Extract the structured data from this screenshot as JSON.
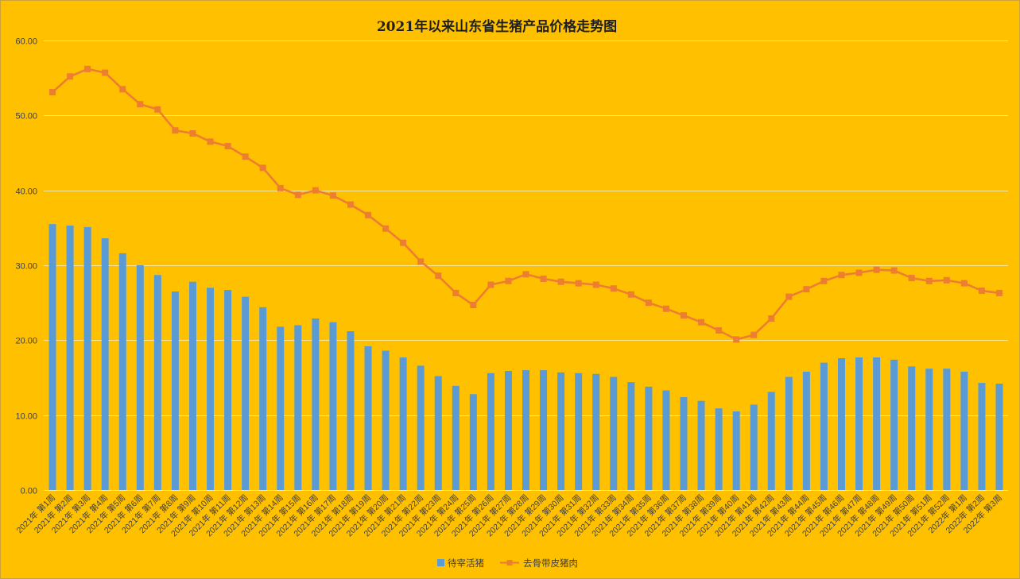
{
  "chart_data": {
    "type": "bar",
    "title": "2021年以来山东省生猪产品价格走势图",
    "categories": [
      "2021年 第1周",
      "2021年 第2周",
      "2021年 第3周",
      "2021年 第4周",
      "2021年 第5周",
      "2021年 第6周",
      "2021年 第7周",
      "2021年 第8周",
      "2021年 第9周",
      "2021年 第10周",
      "2021年 第11周",
      "2021年 第12周",
      "2021年 第13周",
      "2021年 第14周",
      "2021年 第15周",
      "2021年 第16周",
      "2021年 第17周",
      "2021年 第18周",
      "2021年 第19周",
      "2021年 第20周",
      "2021年 第21周",
      "2021年 第22周",
      "2021年 第23周",
      "2021年 第24周",
      "2021年 第25周",
      "2021年 第26周",
      "2021年 第27周",
      "2021年 第28周",
      "2021年 第29周",
      "2021年 第30周",
      "2021年 第31周",
      "2021年 第32周",
      "2021年 第33周",
      "2021年 第34周",
      "2021年 第35周",
      "2021年 第36周",
      "2021年 第37周",
      "2021年 第38周",
      "2021年 第39周",
      "2021年 第40周",
      "2021年 第41周",
      "2021年 第42周",
      "2021年 第43周",
      "2021年 第44周",
      "2021年 第45周",
      "2021年 第46周",
      "2021年 第47周",
      "2021年 第48周",
      "2021年 第49周",
      "2021年 第50周",
      "2021年 第51周",
      "2021年 第52周",
      "2022年 第1周",
      "2022年 第2周",
      "2022年 第3周"
    ],
    "ylim": [
      0,
      60
    ],
    "yticks": [
      0,
      10,
      20,
      30,
      40,
      50,
      60
    ],
    "ytick_labels": [
      "0.00",
      "10.00",
      "20.00",
      "30.00",
      "40.00",
      "50.00",
      "60.00"
    ],
    "grid": true,
    "legend": "bottom",
    "series": [
      {
        "name": "待宰活猪",
        "type": "bar",
        "color": "#5B9BD5",
        "values": [
          35.5,
          35.3,
          35.1,
          33.6,
          31.6,
          30.0,
          28.7,
          26.5,
          27.8,
          27.0,
          26.7,
          25.8,
          24.4,
          21.8,
          22.0,
          22.9,
          22.4,
          21.2,
          19.2,
          18.6,
          17.7,
          16.6,
          15.2,
          13.9,
          12.8,
          15.6,
          15.9,
          16.0,
          16.0,
          15.7,
          15.6,
          15.5,
          15.1,
          14.4,
          13.8,
          13.3,
          12.4,
          11.9,
          10.9,
          10.5,
          11.4,
          13.1,
          15.1,
          15.8,
          17.0,
          17.6,
          17.7,
          17.7,
          17.4,
          16.5,
          16.2,
          16.2,
          15.8,
          14.3,
          14.2
        ]
      },
      {
        "name": "去骨带皮猪肉",
        "type": "line",
        "color": "#ED7D31",
        "values": [
          53.1,
          55.2,
          56.2,
          55.7,
          53.5,
          51.5,
          50.8,
          48.0,
          47.6,
          46.5,
          45.9,
          44.5,
          43.0,
          40.3,
          39.4,
          40.0,
          39.3,
          38.1,
          36.7,
          34.9,
          33.0,
          30.5,
          28.6,
          26.3,
          24.7,
          27.4,
          27.9,
          28.8,
          28.2,
          27.8,
          27.6,
          27.4,
          26.9,
          26.1,
          25.0,
          24.2,
          23.3,
          22.4,
          21.3,
          20.1,
          20.7,
          22.9,
          25.8,
          26.8,
          27.9,
          28.7,
          29.0,
          29.4,
          29.3,
          28.3,
          27.9,
          28.0,
          27.6,
          26.6,
          26.3
        ]
      }
    ]
  }
}
